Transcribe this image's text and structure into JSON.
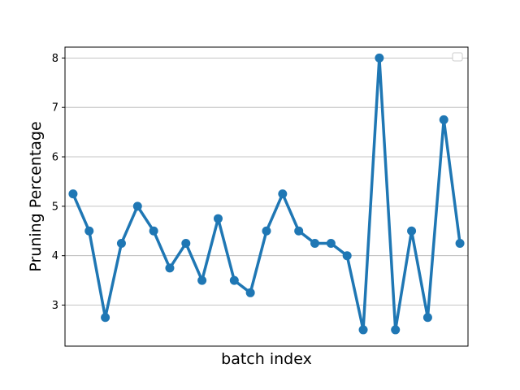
{
  "chart_data": {
    "type": "line",
    "title": "",
    "xlabel": "batch index",
    "ylabel": "Pruning Percentage",
    "x": [
      0,
      1,
      2,
      3,
      4,
      5,
      6,
      7,
      8,
      9,
      10,
      11,
      12,
      13,
      14,
      15,
      16,
      17,
      18,
      19,
      20,
      21,
      22,
      23,
      24
    ],
    "series": [
      {
        "values": [
          5.25,
          4.5,
          2.75,
          4.25,
          5.0,
          4.5,
          3.75,
          4.25,
          3.5,
          4.75,
          3.5,
          3.25,
          4.5,
          5.25,
          4.5,
          4.25,
          4.25,
          4.0,
          2.5,
          8.0,
          2.5,
          4.5,
          2.75,
          6.75,
          4.25
        ],
        "color": "#1f77b4",
        "marker": "circle"
      }
    ],
    "ylim": [
      2.17,
      8.22
    ],
    "xlim": [
      -0.5,
      24.5
    ],
    "yticks": [
      "3",
      "4",
      "5",
      "6",
      "7",
      "8"
    ],
    "ytick_values": [
      3,
      4,
      5,
      6,
      7,
      8
    ],
    "xticks_visible": false,
    "grid": "y-major",
    "legend": {
      "placement": "top-right",
      "entries": []
    }
  }
}
